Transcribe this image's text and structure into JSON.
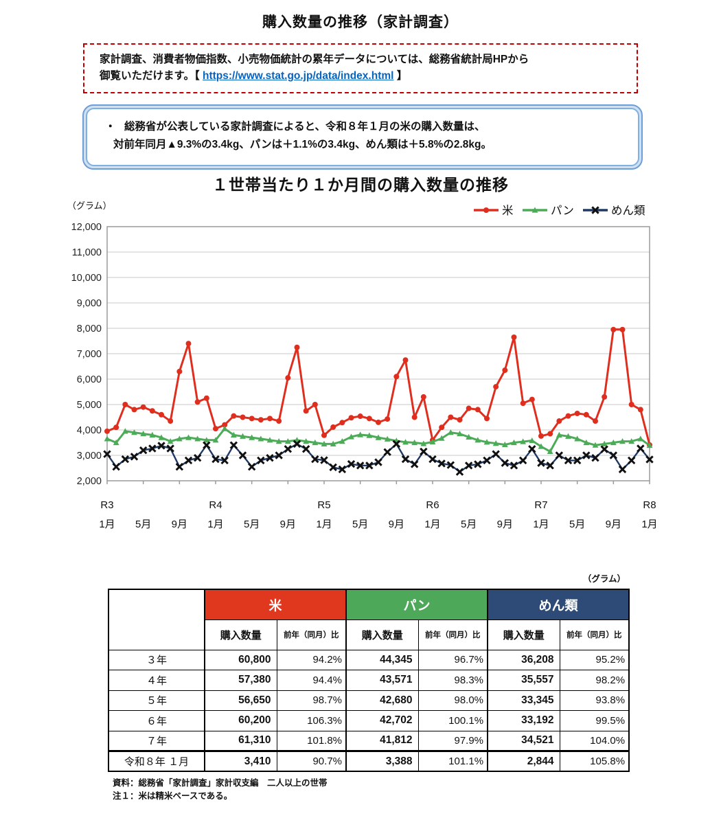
{
  "page": {
    "title": "購入数量の推移（家計調査）"
  },
  "notice_box": {
    "line1": "家計調査、消費者物価指数、小売物価統計の累年データについては、総務省統計局HPから",
    "line2_prefix": "御覧いただけます。【 ",
    "link_text": "https://www.stat.go.jp/data/index.html",
    "line2_suffix": " 】"
  },
  "summary_box": {
    "bullet": "・",
    "line1": "総務省が公表している家計調査によると、令和８年１月の米の購入数量は、",
    "line2": "対前年同月▲9.3%の3.4kg、パンは＋1.1%の3.4kg、めん類は＋5.8%の2.8kg。"
  },
  "chart": {
    "title": "１世帯当たり１か月間の購入数量の推移",
    "unit_label": "（グラム）"
  },
  "chart_data": {
    "type": "line",
    "title": "１世帯当たり１か月間の購入数量の推移",
    "ylabel": "（グラム）",
    "ylim": [
      2000,
      12000
    ],
    "y_step": 1000,
    "y_tick_labels": [
      "2,000",
      "3,000",
      "4,000",
      "5,000",
      "6,000",
      "7,000",
      "8,000",
      "9,000",
      "10,000",
      "11,000",
      "12,000"
    ],
    "grid": true,
    "legend_position": "top-right",
    "categories": [
      "R3-1月",
      "R3-2月",
      "R3-3月",
      "R3-4月",
      "R3-5月",
      "R3-6月",
      "R3-7月",
      "R3-8月",
      "R3-9月",
      "R3-10月",
      "R3-11月",
      "R3-12月",
      "R4-1月",
      "R4-2月",
      "R4-3月",
      "R4-4月",
      "R4-5月",
      "R4-6月",
      "R4-7月",
      "R4-8月",
      "R4-9月",
      "R4-10月",
      "R4-11月",
      "R4-12月",
      "R5-1月",
      "R5-2月",
      "R5-3月",
      "R5-4月",
      "R5-5月",
      "R5-6月",
      "R5-7月",
      "R5-8月",
      "R5-9月",
      "R5-10月",
      "R5-11月",
      "R5-12月",
      "R6-1月",
      "R6-2月",
      "R6-3月",
      "R6-4月",
      "R6-5月",
      "R6-6月",
      "R6-7月",
      "R6-8月",
      "R6-9月",
      "R6-10月",
      "R6-11月",
      "R6-12月",
      "R7-1月",
      "R7-2月",
      "R7-3月",
      "R7-4月",
      "R7-5月",
      "R7-6月",
      "R7-7月",
      "R7-8月",
      "R7-9月",
      "R7-10月",
      "R7-11月",
      "R7-12月",
      "R8-1月"
    ],
    "x_ticks": [
      {
        "i": 0,
        "era": "R3",
        "m": "1月"
      },
      {
        "i": 4,
        "era": "",
        "m": "5月"
      },
      {
        "i": 8,
        "era": "",
        "m": "9月"
      },
      {
        "i": 12,
        "era": "R4",
        "m": "1月"
      },
      {
        "i": 16,
        "era": "",
        "m": "5月"
      },
      {
        "i": 20,
        "era": "",
        "m": "9月"
      },
      {
        "i": 24,
        "era": "R5",
        "m": "1月"
      },
      {
        "i": 28,
        "era": "",
        "m": "5月"
      },
      {
        "i": 32,
        "era": "",
        "m": "9月"
      },
      {
        "i": 36,
        "era": "R6",
        "m": "1月"
      },
      {
        "i": 40,
        "era": "",
        "m": "5月"
      },
      {
        "i": 44,
        "era": "",
        "m": "9月"
      },
      {
        "i": 48,
        "era": "R7",
        "m": "1月"
      },
      {
        "i": 52,
        "era": "",
        "m": "5月"
      },
      {
        "i": 56,
        "era": "",
        "m": "9月"
      },
      {
        "i": 60,
        "era": "R8",
        "m": "1月"
      }
    ],
    "series": [
      {
        "name": "米",
        "color": "#df2e1e",
        "marker": "circle",
        "values": [
          3950,
          4100,
          5000,
          4800,
          4900,
          4750,
          4600,
          4350,
          6300,
          7400,
          5100,
          5250,
          4050,
          4200,
          4550,
          4500,
          4450,
          4400,
          4450,
          4350,
          6050,
          7250,
          4750,
          5000,
          3790,
          4110,
          4290,
          4480,
          4540,
          4450,
          4300,
          4430,
          6100,
          6750,
          4500,
          5300,
          3600,
          4100,
          4500,
          4400,
          4850,
          4800,
          4450,
          5700,
          6350,
          7650,
          5050,
          5200,
          3760,
          3850,
          4350,
          4550,
          4650,
          4600,
          4350,
          5300,
          7950,
          7950,
          5000,
          4800,
          3410
        ]
      },
      {
        "name": "パン",
        "color": "#4cab57",
        "marker": "triangle",
        "values": [
          3650,
          3500,
          3950,
          3900,
          3850,
          3800,
          3700,
          3550,
          3650,
          3700,
          3650,
          3600,
          3600,
          4050,
          3800,
          3750,
          3700,
          3650,
          3600,
          3550,
          3550,
          3600,
          3550,
          3500,
          3450,
          3450,
          3550,
          3730,
          3810,
          3780,
          3700,
          3640,
          3570,
          3520,
          3500,
          3460,
          3530,
          3670,
          3900,
          3850,
          3720,
          3600,
          3520,
          3470,
          3420,
          3500,
          3540,
          3580,
          3350,
          3150,
          3800,
          3750,
          3650,
          3500,
          3400,
          3450,
          3500,
          3550,
          3550,
          3650,
          3390
        ]
      },
      {
        "name": "めん類",
        "color": "#1f3864",
        "marker": "x-square",
        "marker_color": "#101010",
        "values": [
          3050,
          2550,
          2850,
          2950,
          3200,
          3270,
          3380,
          3270,
          2550,
          2800,
          2900,
          3400,
          2850,
          2800,
          3400,
          3000,
          2550,
          2800,
          2900,
          3000,
          3250,
          3450,
          3250,
          2850,
          2810,
          2530,
          2450,
          2660,
          2600,
          2600,
          2730,
          3130,
          3450,
          2850,
          2650,
          3150,
          2850,
          2680,
          2620,
          2350,
          2600,
          2650,
          2800,
          3050,
          2700,
          2600,
          2800,
          3250,
          2700,
          2600,
          3000,
          2800,
          2800,
          3000,
          2900,
          3240,
          3000,
          2450,
          2800,
          3270,
          2840
        ]
      }
    ]
  },
  "table": {
    "unit_label": "（グラム）",
    "groups": [
      {
        "label": "米",
        "color": "#e0381f"
      },
      {
        "label": "パン",
        "color": "#4da85a"
      },
      {
        "label": "めん類",
        "color": "#2e4b78"
      }
    ],
    "sub_headers": {
      "qty": "購入数量",
      "yoy": "前年（同月）比"
    },
    "rows": [
      {
        "label": "３年",
        "values": [
          "60,800",
          "94.2%",
          "44,345",
          "96.7%",
          "36,208",
          "95.2%"
        ],
        "emphasized": false
      },
      {
        "label": "４年",
        "values": [
          "57,380",
          "94.4%",
          "43,571",
          "98.3%",
          "35,557",
          "98.2%"
        ],
        "emphasized": false
      },
      {
        "label": "５年",
        "values": [
          "56,650",
          "98.7%",
          "42,680",
          "98.0%",
          "33,345",
          "93.8%"
        ],
        "emphasized": false
      },
      {
        "label": "６年",
        "values": [
          "60,200",
          "106.3%",
          "42,702",
          "100.1%",
          "33,192",
          "99.5%"
        ],
        "emphasized": false
      },
      {
        "label": "７年",
        "values": [
          "61,310",
          "101.8%",
          "41,812",
          "97.9%",
          "34,521",
          "104.0%"
        ],
        "emphasized": false
      },
      {
        "label": "令和８年 １月",
        "values": [
          "3,410",
          "90.7%",
          "3,388",
          "101.1%",
          "2,844",
          "105.8%"
        ],
        "emphasized": true
      }
    ]
  },
  "footnotes": {
    "line1": "資料：総務省「家計調査」家計収支編　二人以上の世帯",
    "line2": "注１：米は精米ベースである。"
  }
}
